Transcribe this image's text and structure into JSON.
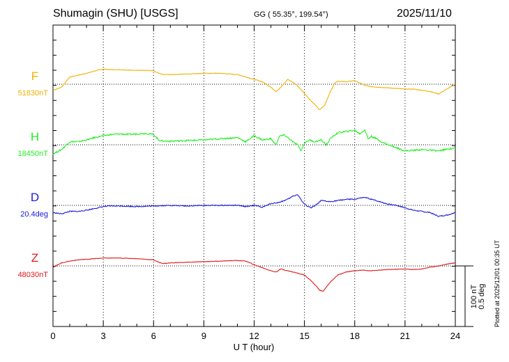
{
  "header": {
    "station": "Shumagin (SHU)  [USGS]",
    "coords": "GG ( 55.35°, 199.54°)",
    "date": "2025/11/10"
  },
  "footer": {
    "plotted": "Plotted at 2025/12/01 00:35 UT"
  },
  "colors": {
    "F": "#f0b000",
    "H": "#22ee22",
    "D": "#1a1adc",
    "Z": "#e01818"
  },
  "chart_data": {
    "type": "line",
    "xlabel": "U T (hour)",
    "xlim": [
      0,
      24
    ],
    "xticks": [
      "0",
      "3",
      "6",
      "9",
      "12",
      "15",
      "18",
      "21",
      "24"
    ],
    "grid": "dotted vertical every 3 h; dotted baseline per channel",
    "scale_bar": [
      "100 nT",
      "0.5 deg"
    ],
    "series": [
      {
        "name": "F",
        "baseline_label": "51830nT",
        "color": "#f0b000",
        "x": [
          0,
          0.5,
          1,
          1.5,
          2,
          2.5,
          3,
          3.5,
          4,
          5,
          5.5,
          6,
          6.3,
          6.6,
          7,
          8,
          9,
          10,
          11,
          11.5,
          12,
          12.5,
          13,
          13.3,
          13.6,
          14,
          14.5,
          15,
          15.3,
          15.6,
          15.9,
          16.2,
          16.5,
          16.8,
          17,
          17.5,
          18,
          18.3,
          18.6,
          19,
          19.5,
          20,
          20.5,
          21,
          21.5,
          22,
          22.5,
          23,
          23.5,
          24
        ],
        "y": [
          -10,
          -5,
          12,
          15,
          18,
          22,
          25,
          24,
          24,
          23,
          23,
          22,
          18,
          16,
          16,
          17,
          18,
          18,
          16,
          12,
          8,
          4,
          -5,
          -12,
          -5,
          8,
          0,
          -15,
          -25,
          -33,
          -42,
          -35,
          -15,
          2,
          5,
          4,
          6,
          2,
          -2,
          -4,
          -5,
          -6,
          -7,
          -8,
          -8,
          -10,
          -12,
          -16,
          -8,
          0
        ]
      },
      {
        "name": "H",
        "baseline_label": "18450nT",
        "color": "#22ee22",
        "x": [
          0,
          0.5,
          1,
          1.5,
          2,
          2.5,
          3,
          3.5,
          4,
          4.5,
          5,
          5.5,
          6,
          6.3,
          6.6,
          7,
          8,
          9,
          10,
          11,
          11.5,
          12,
          12.5,
          13,
          13.3,
          13.5,
          13.8,
          14,
          14.3,
          14.6,
          14.8,
          15,
          15.3,
          15.6,
          16,
          16.3,
          16.6,
          17,
          17.5,
          18,
          18.3,
          18.6,
          18.8,
          19,
          19.3,
          19.6,
          20,
          20.5,
          21,
          22,
          23,
          24
        ],
        "y": [
          -15,
          -8,
          5,
          5,
          8,
          12,
          15,
          17,
          18,
          17,
          18,
          19,
          17,
          8,
          6,
          6,
          7,
          8,
          10,
          12,
          5,
          15,
          8,
          10,
          0,
          14,
          16,
          12,
          5,
          0,
          -10,
          3,
          8,
          5,
          8,
          0,
          12,
          20,
          22,
          24,
          18,
          25,
          10,
          14,
          10,
          5,
          0,
          -5,
          -10,
          -8,
          -10,
          -5
        ]
      },
      {
        "name": "D",
        "baseline_label": "20.4deg",
        "color": "#1a1adc",
        "x": [
          0,
          0.5,
          1,
          1.5,
          2,
          2.5,
          3,
          3.5,
          4,
          5,
          6,
          7,
          8,
          9,
          10,
          11,
          11.5,
          12,
          12.5,
          13,
          13.5,
          14,
          14.3,
          14.6,
          14.9,
          15.1,
          15.4,
          15.6,
          15.8,
          16,
          16.5,
          17,
          17.5,
          18,
          18.3,
          18.6,
          19,
          19.5,
          20,
          20.5,
          21,
          21.5,
          22,
          22.5,
          23,
          23.5,
          24
        ],
        "y": [
          -12,
          -14,
          -10,
          -10,
          -8,
          -5,
          -2,
          -1,
          -1,
          -2,
          -1,
          0,
          -1,
          0,
          0,
          0,
          -2,
          0,
          -3,
          3,
          5,
          10,
          15,
          18,
          5,
          0,
          -4,
          -1,
          3,
          8,
          6,
          8,
          10,
          10,
          12,
          13,
          10,
          6,
          2,
          0,
          -4,
          -8,
          -10,
          -12,
          -18,
          -16,
          -12
        ]
      },
      {
        "name": "Z",
        "baseline_label": "48030nT",
        "color": "#e01818",
        "x": [
          0,
          0.5,
          1,
          1.5,
          2,
          2.5,
          3,
          3.5,
          4,
          5,
          5.5,
          6,
          6.3,
          6.6,
          7,
          8,
          9,
          10,
          11,
          11.5,
          12,
          12.5,
          13,
          13.3,
          13.6,
          14,
          14.3,
          14.6,
          15,
          15.3,
          15.6,
          15.9,
          16.1,
          16.3,
          16.6,
          17,
          17.5,
          18,
          18.5,
          19,
          20,
          21,
          21.5,
          22,
          22.5,
          23,
          23.5,
          24
        ],
        "y": [
          -2,
          5,
          8,
          10,
          11,
          12,
          13,
          13,
          13,
          12,
          11,
          10,
          6,
          4,
          5,
          6,
          7,
          8,
          9,
          8,
          2,
          -3,
          -8,
          -10,
          -5,
          -8,
          -10,
          -12,
          -15,
          -22,
          -30,
          -40,
          -42,
          -35,
          -25,
          -15,
          -10,
          -8,
          -7,
          -8,
          -6,
          -5,
          -6,
          -5,
          -2,
          0,
          3,
          5
        ]
      }
    ]
  }
}
